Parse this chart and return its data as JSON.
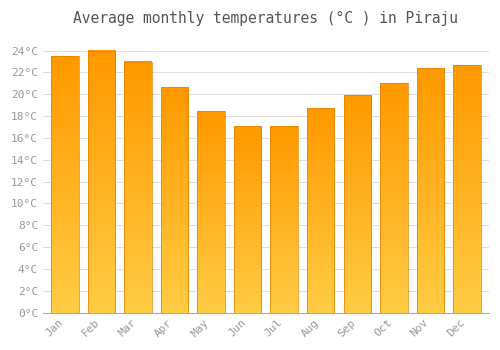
{
  "title": "Average monthly temperatures (°C ) in Piraju",
  "months": [
    "Jan",
    "Feb",
    "Mar",
    "Apr",
    "May",
    "Jun",
    "Jul",
    "Aug",
    "Sep",
    "Oct",
    "Nov",
    "Dec"
  ],
  "values": [
    23.5,
    24.0,
    23.0,
    20.7,
    18.5,
    17.1,
    17.1,
    18.7,
    19.9,
    21.0,
    22.4,
    22.7
  ],
  "bar_color_top": "#FFB300",
  "bar_color_bottom": "#FFA500",
  "bar_edge_color": "#E08000",
  "background_color": "#FFFFFF",
  "grid_color": "#DDDDDD",
  "ytick_labels": [
    "0°C",
    "2°C",
    "4°C",
    "6°C",
    "8°C",
    "10°C",
    "12°C",
    "14°C",
    "16°C",
    "18°C",
    "20°C",
    "22°C",
    "24°C"
  ],
  "ytick_values": [
    0,
    2,
    4,
    6,
    8,
    10,
    12,
    14,
    16,
    18,
    20,
    22,
    24
  ],
  "ylim": [
    0,
    25.5
  ],
  "title_fontsize": 10.5,
  "tick_fontsize": 8,
  "title_color": "#555555",
  "tick_color": "#999999",
  "bar_width": 0.75
}
